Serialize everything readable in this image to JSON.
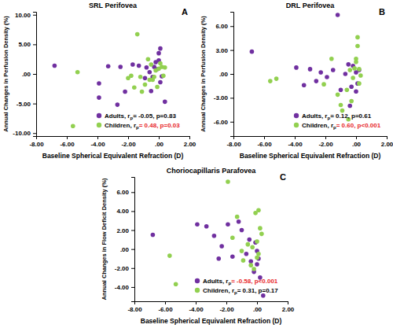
{
  "chart_data": [
    {
      "type": "scatter",
      "title": "SRL Perifovea",
      "panel_label": "A",
      "x_label": "Baseline Spherical Equivalent Refraction (D)",
      "y_label": "Annual Changes in Perfusion Density (%)",
      "xlim": [
        -8,
        2
      ],
      "xticks": [
        {
          "value": -8,
          "label": "-8.00"
        },
        {
          "value": -6,
          "label": "-6.00"
        },
        {
          "value": -4,
          "label": "-4.00"
        },
        {
          "value": -2,
          "label": "-2.00"
        },
        {
          "value": 0,
          "label": ".00"
        },
        {
          "value": 2,
          "label": "2.00"
        }
      ],
      "ylim": [
        -10.5,
        10.5
      ],
      "yticks": [
        {
          "value": -10,
          "label": "-10.00"
        },
        {
          "value": -5,
          "label": "-5.00"
        },
        {
          "value": 0,
          "label": ".00"
        },
        {
          "value": 5,
          "label": "5.00"
        },
        {
          "value": 10,
          "label": "10.00"
        }
      ],
      "series": [
        {
          "name": "Adults",
          "color": "#7030a0",
          "label": "Adults, r",
          "label_sub": "p",
          "stat": "= -0.05, p=0.83",
          "stat_color": "#000000",
          "x": [
            -6.8,
            -3.9,
            -3.3,
            -3.9,
            -2.7,
            -2.5,
            -2.2,
            -1.7,
            -1.3,
            -0.9,
            -0.8,
            -0.6,
            -0.5,
            -0.4,
            -0.3,
            -0.2,
            -0.1,
            0.0,
            0.0,
            0.1,
            0.2,
            0.4,
            0.1
          ],
          "values": [
            1.4,
            -1.6,
            1.3,
            -4.0,
            -5.2,
            1.2,
            -3.0,
            1.6,
            1.4,
            -0.7,
            1.1,
            0.3,
            -2.9,
            -0.5,
            1.2,
            2.0,
            0.8,
            2.3,
            3.5,
            4.3,
            -0.4,
            -4.7,
            -1.4
          ]
        },
        {
          "name": "Children",
          "color": "#92d050",
          "label": "Children, r",
          "label_sub": "p",
          "stat": "= 0.48, p=0.03",
          "stat_color": "#e8282b",
          "x": [
            -5.6,
            -5.3,
            -2.0,
            -1.8,
            -1.6,
            -1.4,
            -1.2,
            -1.1,
            -0.9,
            -0.7,
            -0.5,
            -0.4,
            -0.3,
            -0.2,
            -0.1,
            0.0,
            0.1,
            0.2,
            0.3,
            0.4,
            -0.6
          ],
          "values": [
            -8.8,
            0.3,
            -0.7,
            -0.3,
            -2.3,
            6.7,
            -0.5,
            -3.0,
            -1.8,
            2.5,
            1.6,
            -1.0,
            -0.5,
            0.6,
            -2.2,
            0.9,
            1.8,
            1.2,
            -0.3,
            1.1,
            -1.0
          ]
        }
      ]
    },
    {
      "type": "scatter",
      "title": "DRL Perifovea",
      "panel_label": "B",
      "x_label": "Baseline Spherical Equivalent Refraction (D)",
      "y_label": "Annual Changes in Perfusion Density (%)",
      "xlim": [
        -8,
        2
      ],
      "xticks": [
        {
          "value": -8,
          "label": "-8.00"
        },
        {
          "value": -6,
          "label": "-6.00"
        },
        {
          "value": -4,
          "label": "-4.00"
        },
        {
          "value": -2,
          "label": "-2.00"
        },
        {
          "value": 0,
          "label": ".00"
        },
        {
          "value": 2,
          "label": "2.00"
        }
      ],
      "ylim": [
        -7.8,
        7.8
      ],
      "yticks": [
        {
          "value": -6,
          "label": "-6.00"
        },
        {
          "value": -3,
          "label": "-3.00"
        },
        {
          "value": 0,
          "label": ".00"
        },
        {
          "value": 3,
          "label": "3.00"
        },
        {
          "value": 6,
          "label": "6.00"
        }
      ],
      "series": [
        {
          "name": "Adults",
          "color": "#7030a0",
          "label": "Adults, r",
          "label_sub": "p",
          "stat": "= 0.12, p=0.61",
          "stat_color": "#000000",
          "x": [
            -6.8,
            -3.9,
            -3.4,
            -3.0,
            -2.6,
            -2.3,
            -1.9,
            -1.5,
            -1.2,
            -1.0,
            -0.7,
            -0.5,
            -0.3,
            -0.2,
            0.0,
            0.1,
            0.2,
            -0.4,
            0.0
          ],
          "values": [
            2.8,
            0.8,
            -1.4,
            0.6,
            -0.9,
            0.2,
            -0.4,
            0.5,
            7.4,
            -2.0,
            0.0,
            1.2,
            -1.6,
            1.0,
            -2.2,
            -1.2,
            0.5,
            -4.0,
            0.2
          ]
        },
        {
          "name": "Children",
          "color": "#92d050",
          "label": "Children, r",
          "label_sub": "p",
          "stat": "= 0.60, p<0.001",
          "stat_color": "#e8282b",
          "x": [
            -5.6,
            -5.2,
            -2.1,
            -1.6,
            -1.2,
            -1.0,
            -0.9,
            -0.6,
            -0.5,
            -0.3,
            -0.2,
            -0.1,
            0.0,
            0.0,
            0.1,
            0.1,
            0.2,
            0.3,
            -0.4,
            0.2
          ],
          "values": [
            -0.9,
            -0.6,
            -1.3,
            1.9,
            -2.6,
            -3.9,
            -4.6,
            -2.0,
            -5.7,
            -3.4,
            -0.5,
            0.7,
            1.5,
            1.9,
            3.5,
            4.6,
            0.6,
            -0.2,
            0.5,
            -1.2
          ]
        }
      ]
    },
    {
      "type": "scatter",
      "title": "Choriocapillaris Parafovea",
      "panel_label": "C",
      "x_label": "Baseline Spherical Equivalent Refraction (D)",
      "y_label": "Annual Changes in Flow Deficit Density (%)",
      "xlim": [
        -8,
        2
      ],
      "xticks": [
        {
          "value": -8,
          "label": "-8.00"
        },
        {
          "value": -6,
          "label": "-6.00"
        },
        {
          "value": -4,
          "label": "-4.00"
        },
        {
          "value": -2,
          "label": "-2.00"
        },
        {
          "value": 0,
          "label": ".00"
        },
        {
          "value": 2,
          "label": "2.00"
        }
      ],
      "ylim": [
        -5.5,
        7.6
      ],
      "yticks": [
        {
          "value": -4,
          "label": "-4.00"
        },
        {
          "value": -2,
          "label": "-2.00"
        },
        {
          "value": 0,
          "label": ".00"
        },
        {
          "value": 2,
          "label": "2.00"
        },
        {
          "value": 4,
          "label": "4.00"
        },
        {
          "value": 6,
          "label": "6.00"
        }
      ],
      "series": [
        {
          "name": "Adults",
          "color": "#7030a0",
          "label": "Adults, r",
          "label_sub": "p",
          "stat": "= -0.58, p<0.001",
          "stat_color": "#e8282b",
          "x": [
            -6.8,
            -3.9,
            -3.3,
            -2.8,
            -2.5,
            -2.3,
            -1.9,
            -1.6,
            -1.2,
            -1.0,
            -0.7,
            -0.5,
            -0.4,
            -0.2,
            -0.1,
            0.0,
            0.1,
            0.2,
            0.4,
            0.0
          ],
          "values": [
            1.5,
            2.6,
            2.4,
            1.4,
            -1.0,
            0.3,
            2.6,
            -0.8,
            2.9,
            2.0,
            -0.5,
            1.0,
            -1.3,
            -2.4,
            0.7,
            -0.2,
            -1.0,
            -3.0,
            -4.9,
            -1.6
          ]
        },
        {
          "name": "Children",
          "color": "#92d050",
          "label": "Children, r",
          "label_sub": "p",
          "stat": "= 0.31, p=0.17",
          "stat_color": "#000000",
          "x": [
            -5.7,
            -5.3,
            -1.9,
            -1.6,
            -1.3,
            -1.0,
            -0.9,
            -0.6,
            -0.4,
            -0.3,
            -0.1,
            0.0,
            0.1,
            0.2,
            0.3,
            0.0,
            -0.2,
            0.1
          ],
          "values": [
            -0.7,
            -3.7,
            7.1,
            1.2,
            3.4,
            -0.2,
            -1.2,
            0.5,
            -1.7,
            0.2,
            3.8,
            -0.9,
            4.1,
            2.2,
            1.6,
            0.8,
            -2.1,
            -0.5
          ]
        }
      ]
    }
  ]
}
